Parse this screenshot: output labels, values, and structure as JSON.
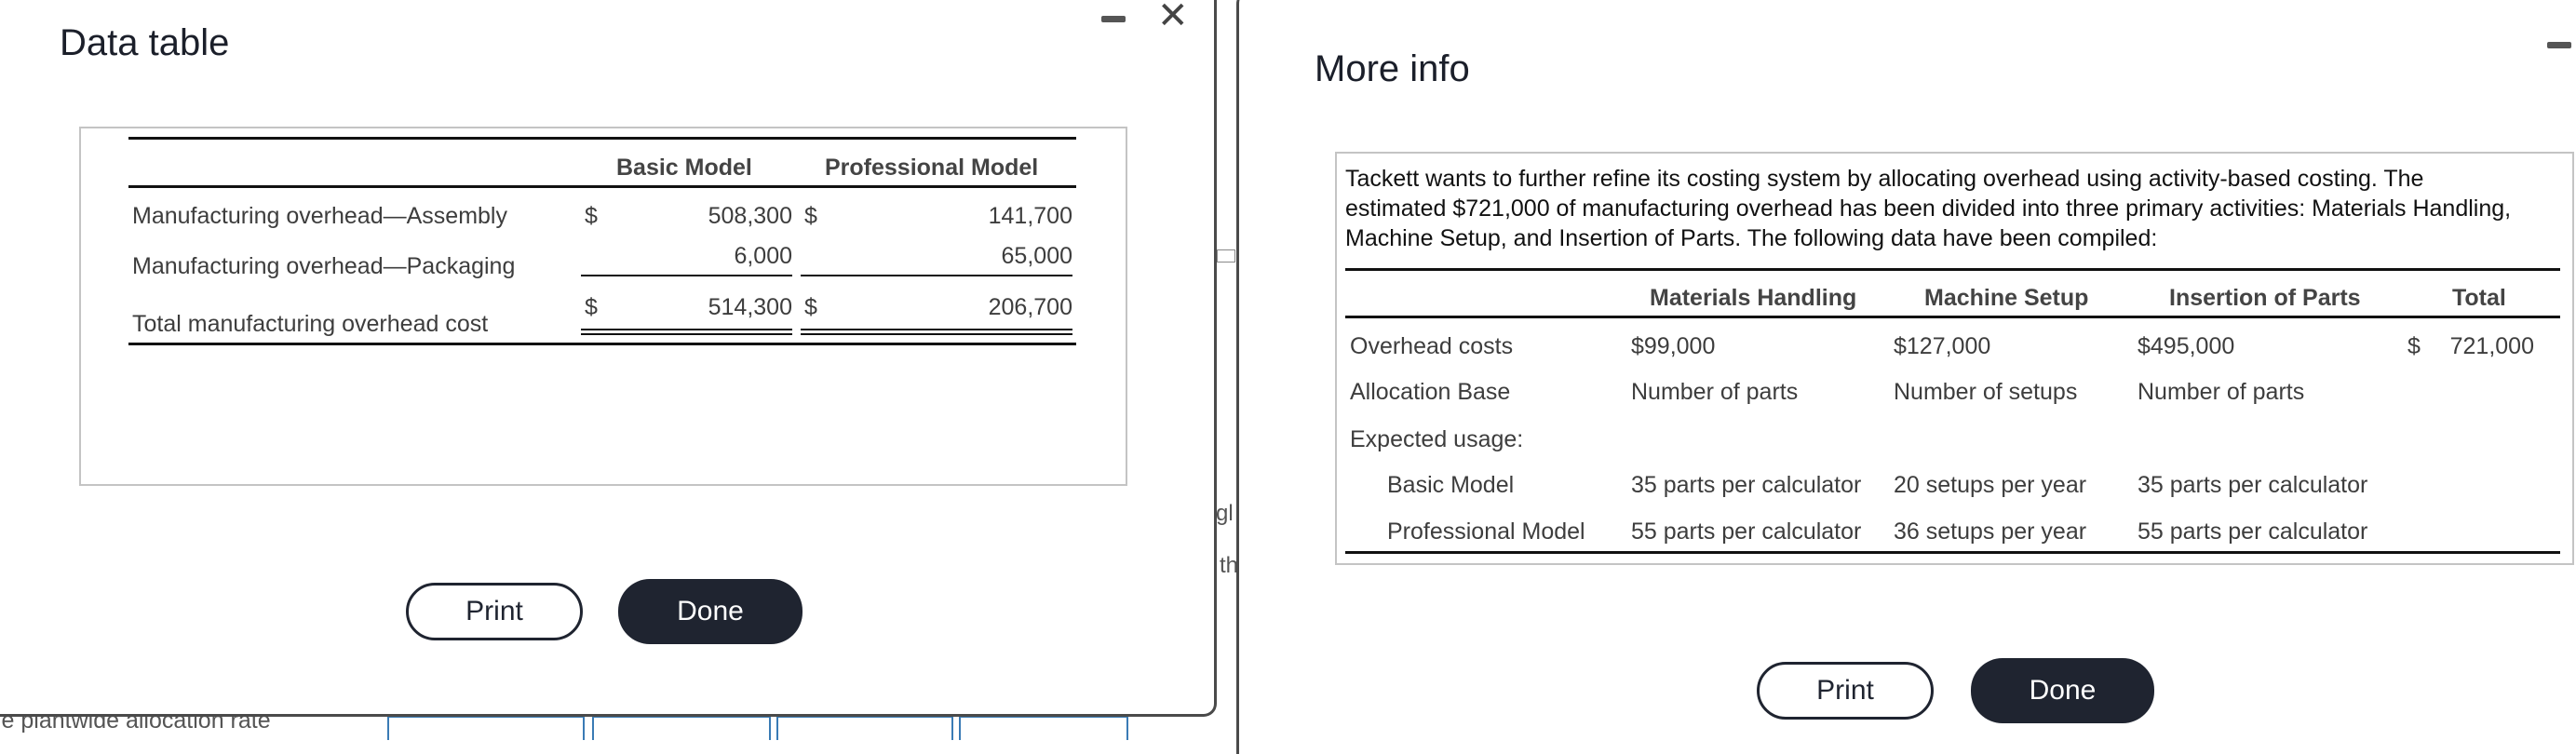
{
  "background": {
    "label_fragment": "le plantwide allocation rate",
    "fragment_1": "gl",
    "fragment_2": "th"
  },
  "data_table": {
    "title": "Data table",
    "columns": [
      "Basic Model",
      "Professional Model"
    ],
    "rows": [
      {
        "label": "Manufacturing overhead—Assembly",
        "cur1": "$",
        "basic": "508,300",
        "cur2": "$",
        "professional": "141,700"
      },
      {
        "label": "Manufacturing overhead—Packaging",
        "basic": "6,000",
        "professional": "65,000"
      },
      {
        "label": "Total manufacturing overhead cost",
        "cur1": "$",
        "basic": "514,300",
        "cur2": "$",
        "professional": "206,700"
      }
    ],
    "print_label": "Print",
    "done_label": "Done",
    "minimize_icon": "minimize-icon",
    "close_icon": "close-icon"
  },
  "more_info": {
    "title": "More info",
    "paragraph_lines": [
      "Tackett wants to further refine its costing system by allocating overhead using activity-based costing. The",
      "estimated $721,000 of manufacturing overhead has been divided into three primary activities: Materials Handling,",
      "Machine Setup, and Insertion of Parts. The following data have been compiled:"
    ],
    "columns": [
      "Materials Handling",
      "Machine Setup",
      "Insertion of Parts",
      "Total"
    ],
    "rows": [
      {
        "label": "Overhead costs",
        "mh": "$99,000",
        "ms": "$127,000",
        "ip": "$495,000",
        "cur": "$",
        "total": "721,000"
      },
      {
        "label": "Allocation Base",
        "mh": "Number of parts",
        "ms": "Number of setups",
        "ip": "Number of parts"
      },
      {
        "label": "Expected usage:"
      },
      {
        "label": "Basic Model",
        "mh": "35 parts per calculator",
        "ms": "20 setups per year",
        "ip": "35 parts per calculator"
      },
      {
        "label": "Professional Model",
        "mh": "55 parts per calculator",
        "ms": "36 setups per year",
        "ip": "55 parts per calculator"
      }
    ],
    "print_label": "Print",
    "done_label": "Done"
  }
}
